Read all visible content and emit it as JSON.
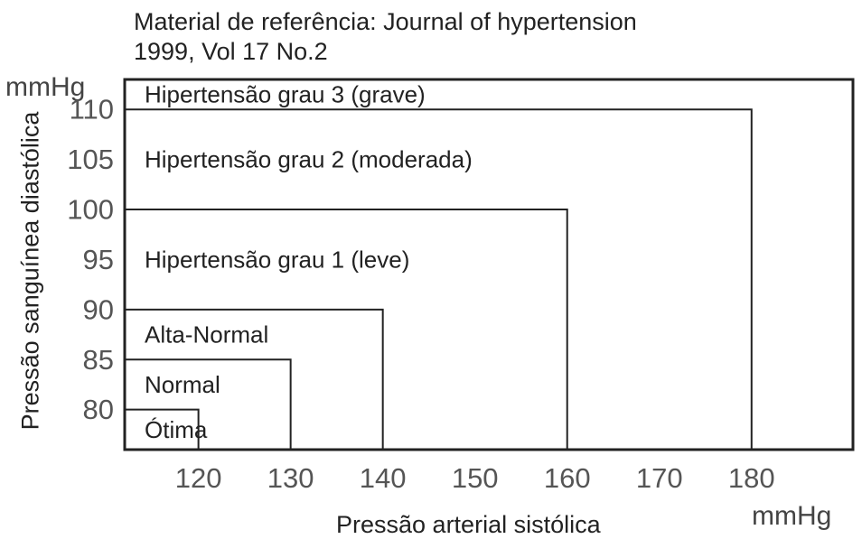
{
  "source": {
    "line1": "Material de referência: Journal of hypertension",
    "line2": "1999, Vol 17 No.2"
  },
  "chart_data": {
    "type": "area",
    "xlabel": "Pressão arterial sistólica",
    "ylabel": "Pressão sanguínea diastólica",
    "x_unit": "mmHg",
    "y_unit": "mmHg",
    "x_ticks": [
      120,
      130,
      140,
      150,
      160,
      170,
      180
    ],
    "y_ticks": [
      80,
      85,
      90,
      95,
      100,
      105,
      110
    ],
    "xlim": [
      112,
      191
    ],
    "ylim": [
      76,
      113
    ],
    "zones": [
      {
        "label": "Hipertensão grau 3 (grave)",
        "systolic_max": null,
        "diastolic_max": null
      },
      {
        "label": "Hipertensão grau 2 (moderada)",
        "systolic_max": 180,
        "diastolic_max": 110
      },
      {
        "label": "Hipertensão grau 1 (leve)",
        "systolic_max": 160,
        "diastolic_max": 100
      },
      {
        "label": "Alta-Normal",
        "systolic_max": 140,
        "diastolic_max": 90
      },
      {
        "label": "Normal",
        "systolic_max": 130,
        "diastolic_max": 85
      },
      {
        "label": "Ótima",
        "systolic_max": 120,
        "diastolic_max": 80
      }
    ],
    "grid": false
  }
}
